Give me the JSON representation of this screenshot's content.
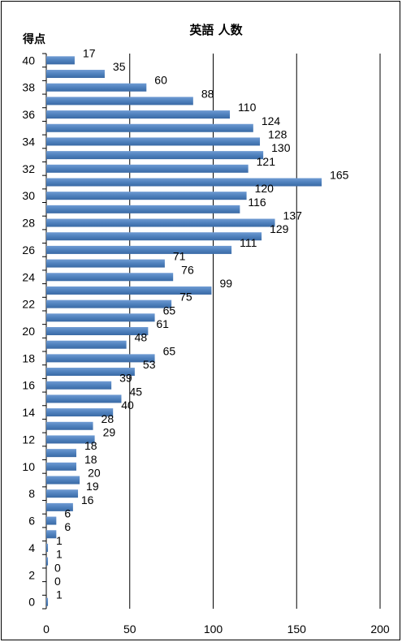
{
  "chart_data": {
    "type": "bar",
    "orientation": "horizontal",
    "title": "英語 人数",
    "ylabel": "得点",
    "xlabel": "",
    "xlim": [
      0,
      200
    ],
    "x_ticks": [
      0,
      50,
      100,
      150,
      200
    ],
    "y_tick_labels": [
      40,
      38,
      36,
      34,
      32,
      30,
      28,
      26,
      24,
      22,
      20,
      18,
      16,
      14,
      12,
      10,
      8,
      6,
      4,
      2,
      0
    ],
    "grid": "vertical",
    "bar_color": "#4f81bd",
    "categories": [
      40,
      39,
      38,
      37,
      36,
      35,
      34,
      33,
      32,
      31,
      30,
      29,
      28,
      27,
      26,
      25,
      24,
      23,
      22,
      21,
      20,
      19,
      18,
      17,
      16,
      15,
      14,
      13,
      12,
      11,
      10,
      9,
      8,
      7,
      6,
      5,
      4,
      3,
      2,
      1,
      0
    ],
    "values": [
      17,
      35,
      60,
      88,
      110,
      124,
      128,
      130,
      121,
      165,
      120,
      116,
      137,
      129,
      111,
      71,
      76,
      99,
      75,
      65,
      61,
      48,
      65,
      53,
      39,
      45,
      40,
      28,
      29,
      18,
      18,
      20,
      19,
      16,
      6,
      6,
      1,
      1,
      0,
      0,
      1
    ]
  }
}
